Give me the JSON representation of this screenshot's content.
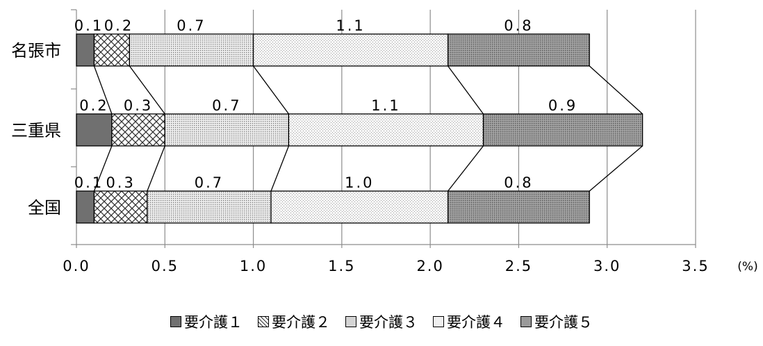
{
  "chart_data": {
    "type": "bar",
    "orientation": "horizontal",
    "stacked": true,
    "categories": [
      "名張市",
      "三重県",
      "全国"
    ],
    "series": [
      {
        "name": "要介護１",
        "values": [
          0.1,
          0.2,
          0.1
        ],
        "labels": [
          "0.1",
          "0.2",
          "0.1"
        ],
        "pattern": "solid"
      },
      {
        "name": "要介護２",
        "values": [
          0.2,
          0.3,
          0.3
        ],
        "labels": [
          "0.2",
          "0.3",
          "0.3"
        ],
        "pattern": "cross"
      },
      {
        "name": "要介護３",
        "values": [
          0.7,
          0.7,
          0.7
        ],
        "labels": [
          "0.7",
          "0.7",
          "0.7"
        ],
        "pattern": "dots"
      },
      {
        "name": "要介護４",
        "values": [
          1.1,
          1.1,
          1.0
        ],
        "labels": [
          "1.1",
          "1.1",
          "1.0"
        ],
        "pattern": "fine"
      },
      {
        "name": "要介護５",
        "values": [
          0.8,
          0.9,
          0.8
        ],
        "labels": [
          "0.8",
          "0.9",
          "0.8"
        ],
        "pattern": "dark"
      }
    ],
    "xlim": [
      0,
      3.5
    ],
    "xticks": [
      "0.0",
      "0.5",
      "1.0",
      "1.5",
      "2.0",
      "2.5",
      "3.0",
      "3.5"
    ],
    "unit": "(%)",
    "grid": true,
    "series_lines": true,
    "legend_position": "bottom",
    "title": "",
    "xlabel": "",
    "ylabel": ""
  }
}
